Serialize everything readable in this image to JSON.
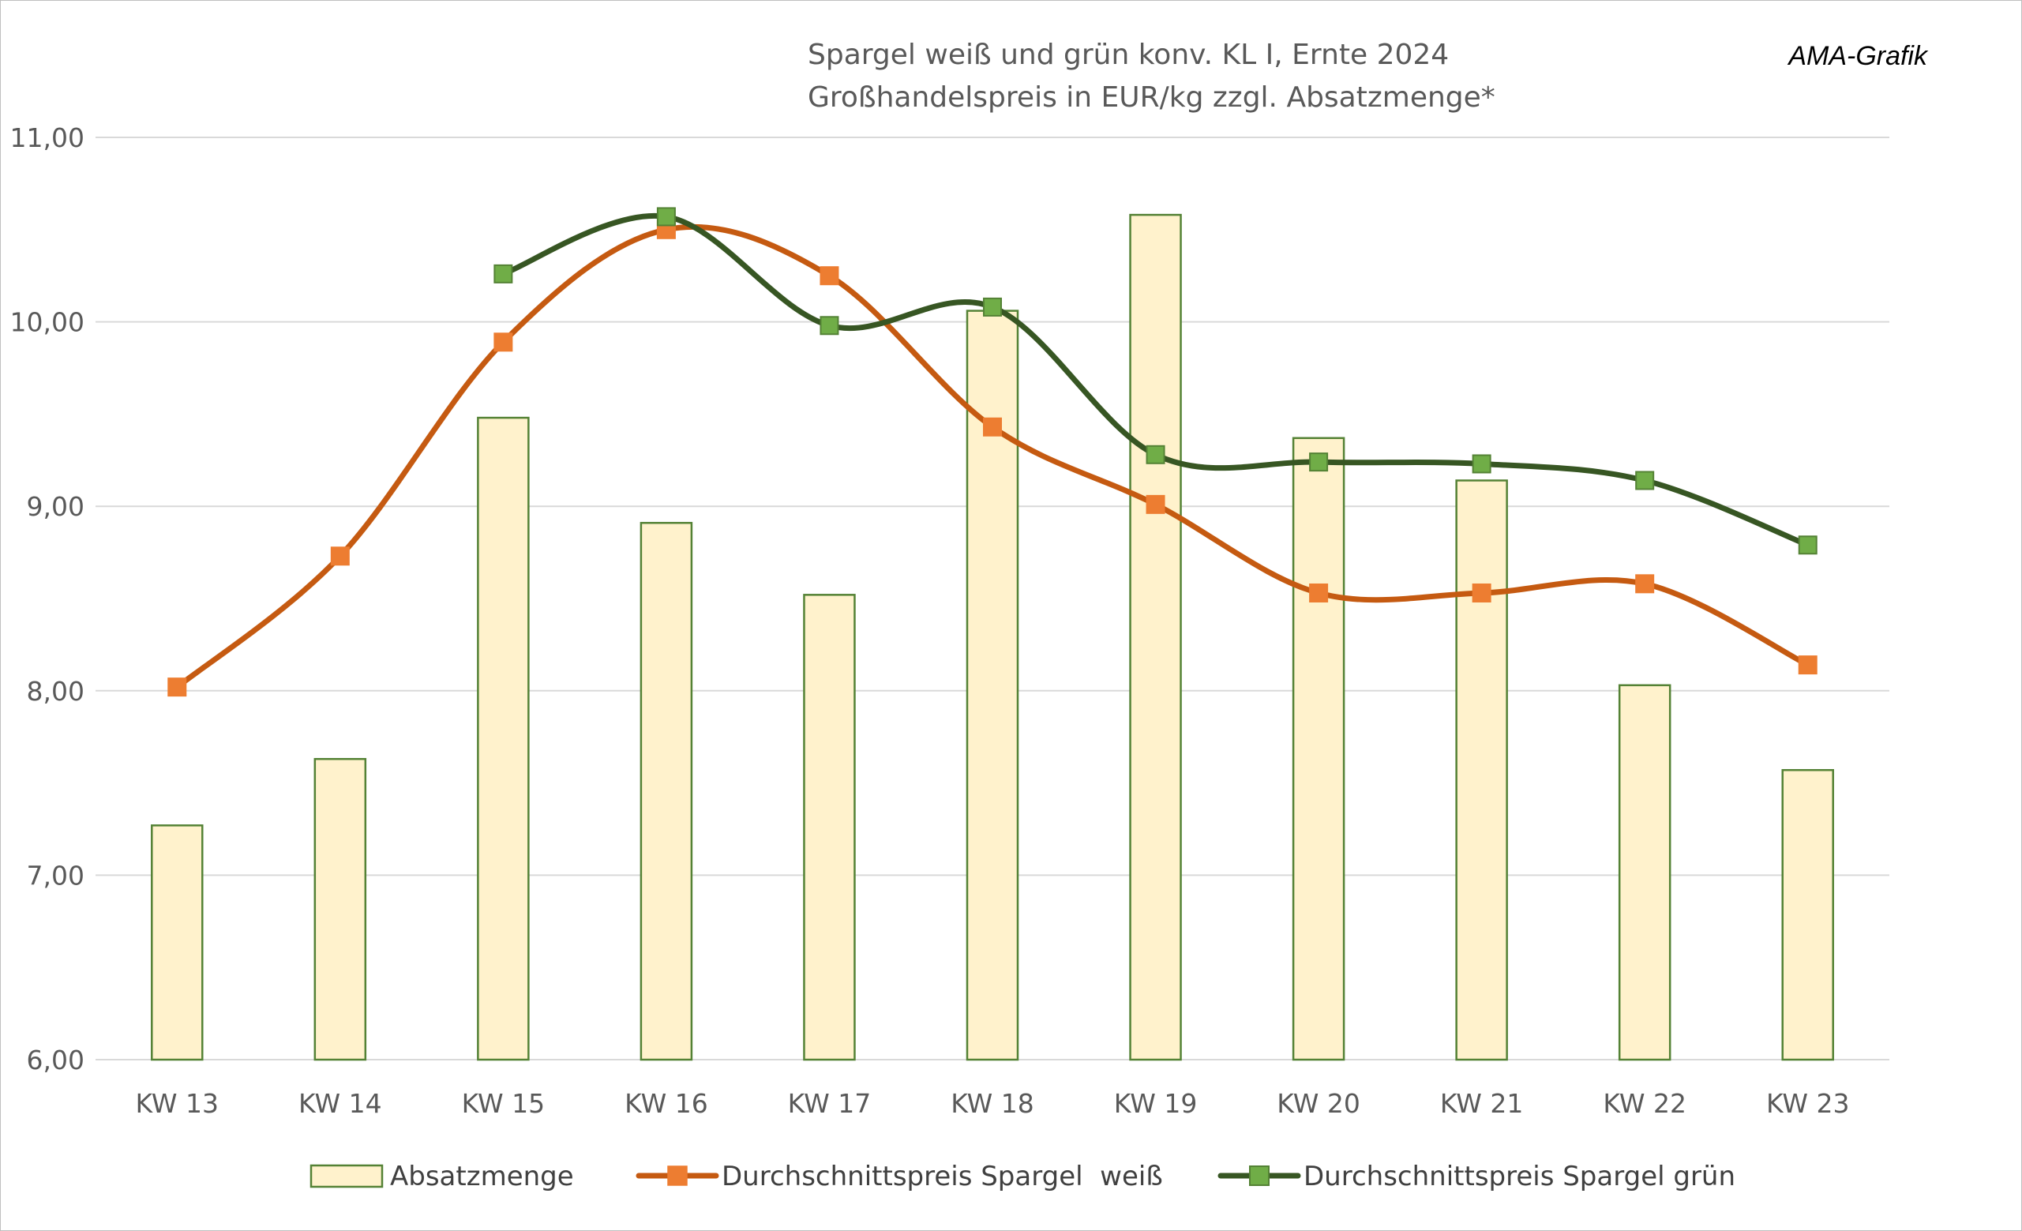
{
  "chart_data": {
    "type": "bar",
    "title": "Spargel weiß und grün konv. KL I, Ernte 2024",
    "subtitle": "Großhandelspreis in EUR/kg zzgl. Absatzmenge*",
    "credit": "AMA-Grafik",
    "categories": [
      "KW 13",
      "KW 14",
      "KW 15",
      "KW 16",
      "KW 17",
      "KW 18",
      "KW 19",
      "KW 20",
      "KW 21",
      "KW 22",
      "KW 23"
    ],
    "ylim": [
      6,
      11
    ],
    "yticks": [
      6,
      7,
      8,
      9,
      10,
      11
    ],
    "ytick_labels": [
      "6,00",
      "7,00",
      "8,00",
      "9,00",
      "10,00",
      "11,00"
    ],
    "grid": true,
    "legend_position": "bottom",
    "series": [
      {
        "name": "Absatzmenge",
        "type": "bar",
        "color": "#fff2cc",
        "stroke": "#548235",
        "values": [
          7.27,
          7.63,
          9.48,
          8.91,
          8.52,
          10.06,
          10.58,
          9.37,
          9.14,
          8.03,
          7.57
        ]
      },
      {
        "name": "Durchschnittspreis Spargel  weiß",
        "type": "line",
        "color": "#c55a11",
        "marker_color": "#ed7d31",
        "values": [
          8.02,
          8.73,
          9.89,
          10.5,
          10.25,
          9.43,
          9.01,
          8.53,
          8.53,
          8.58,
          8.14
        ]
      },
      {
        "name": "Durchschnittspreis Spargel grün",
        "type": "line",
        "color": "#375623",
        "marker_color": "#70ad47",
        "values": [
          null,
          null,
          10.26,
          10.57,
          9.98,
          10.08,
          9.28,
          9.24,
          9.23,
          9.14,
          8.79
        ]
      }
    ]
  }
}
